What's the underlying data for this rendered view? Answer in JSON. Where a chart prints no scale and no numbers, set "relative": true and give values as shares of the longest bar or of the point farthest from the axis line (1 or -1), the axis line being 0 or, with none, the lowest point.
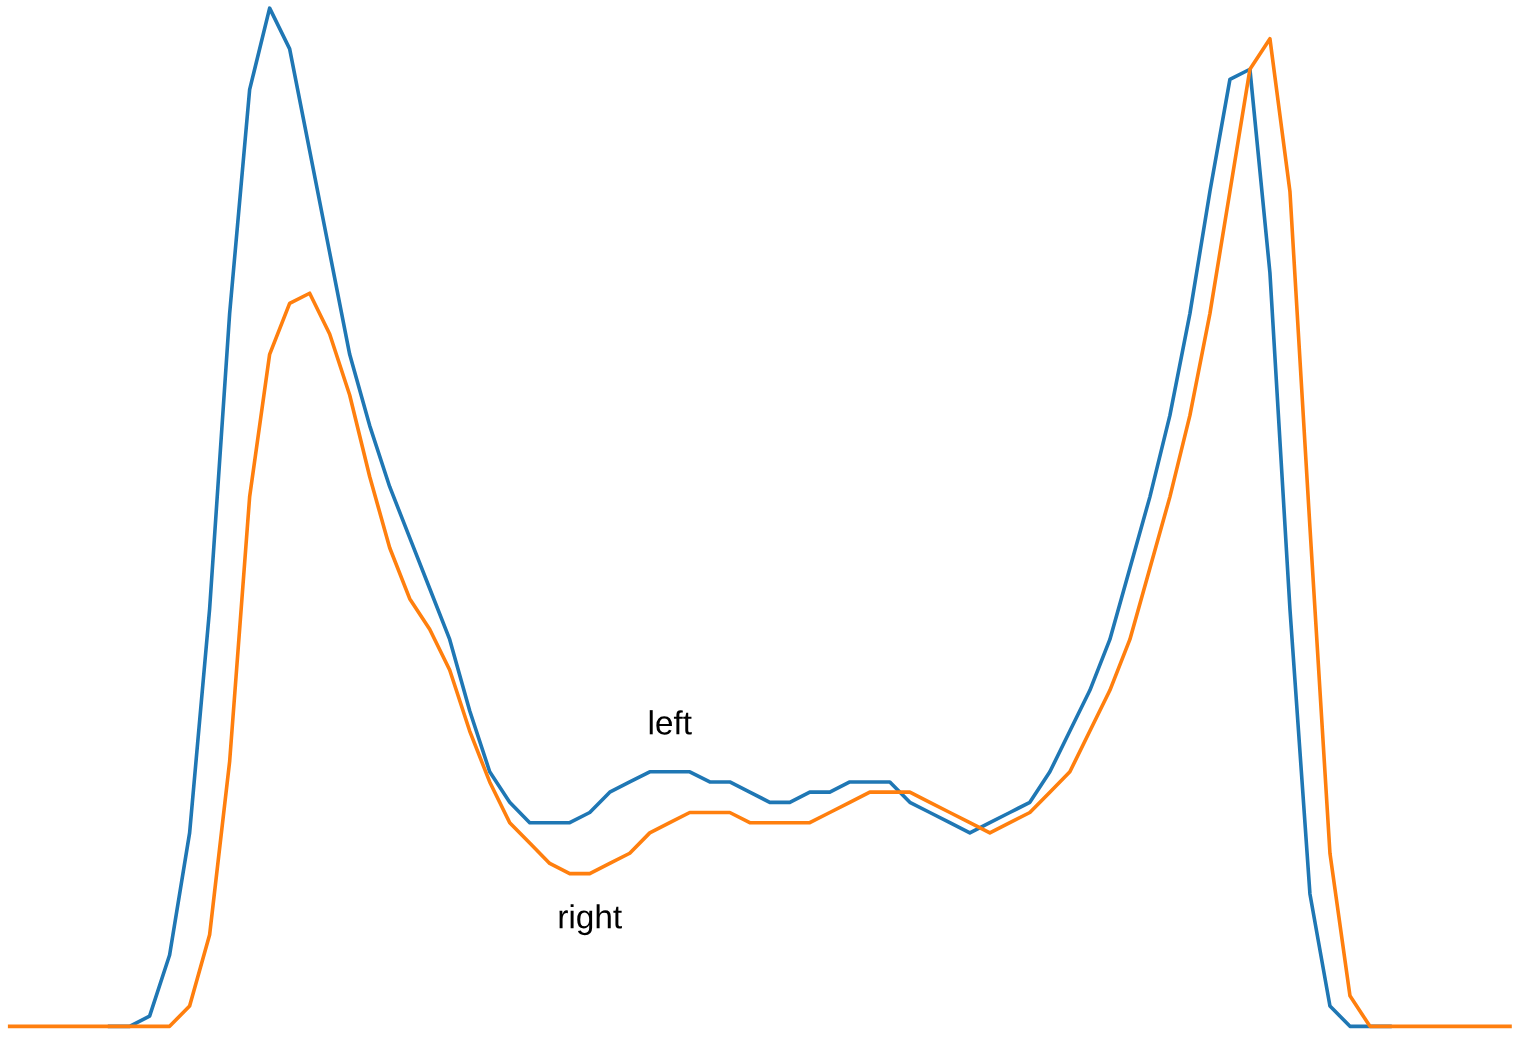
{
  "chart_data": {
    "type": "line",
    "relative": true,
    "grid": false,
    "legend": false,
    "categories": [
      null,
      null,
      null,
      null,
      null,
      null,
      null,
      null,
      null,
      null,
      null,
      null,
      null,
      null,
      null,
      null,
      null,
      null,
      null,
      null,
      null,
      null,
      null,
      null,
      null,
      null,
      null,
      null,
      null,
      null,
      null,
      null,
      null,
      null,
      null,
      null,
      null,
      null,
      null,
      null,
      null,
      null,
      null,
      null,
      null,
      null,
      null,
      null,
      null,
      null,
      null,
      null,
      null,
      null,
      null,
      null,
      null,
      null,
      null,
      null,
      null,
      null,
      null,
      null,
      null,
      null,
      null,
      null,
      null,
      null,
      null,
      null,
      null,
      null,
      null,
      null
    ],
    "series": [
      {
        "name": "left",
        "color": "#1f77b4",
        "values": [
          null,
          null,
          null,
          null,
          null,
          0,
          0,
          0.01,
          0.07,
          0.19,
          0.41,
          0.7,
          0.92,
          1.0,
          0.96,
          0.86,
          0.76,
          0.66,
          0.59,
          0.53,
          0.48,
          0.43,
          0.38,
          0.31,
          0.25,
          0.22,
          0.2,
          0.2,
          0.2,
          0.21,
          0.23,
          0.24,
          0.25,
          0.25,
          0.25,
          0.24,
          0.24,
          0.23,
          0.22,
          0.22,
          0.23,
          0.23,
          0.24,
          0.24,
          0.24,
          0.22,
          0.21,
          0.2,
          0.19,
          0.2,
          0.21,
          0.22,
          0.25,
          0.29,
          0.33,
          0.38,
          0.45,
          0.52,
          0.6,
          0.7,
          0.82,
          0.93,
          0.94,
          0.74,
          0.41,
          0.13,
          0.02,
          0,
          0,
          0,
          null,
          null,
          null,
          null,
          null,
          null
        ]
      },
      {
        "name": "right",
        "color": "#ff7f0e",
        "values": [
          0,
          0,
          0,
          0,
          0,
          0,
          0,
          0,
          0,
          0.02,
          0.09,
          0.26,
          0.52,
          0.66,
          0.71,
          0.72,
          0.68,
          0.62,
          0.54,
          0.47,
          0.42,
          0.39,
          0.35,
          0.29,
          0.24,
          0.2,
          0.18,
          0.16,
          0.15,
          0.15,
          0.16,
          0.17,
          0.19,
          0.2,
          0.21,
          0.21,
          0.21,
          0.2,
          0.2,
          0.2,
          0.2,
          0.21,
          0.22,
          0.23,
          0.23,
          0.23,
          0.22,
          0.21,
          0.2,
          0.19,
          0.2,
          0.21,
          0.23,
          0.25,
          0.29,
          0.33,
          0.38,
          0.45,
          0.52,
          0.6,
          0.7,
          0.82,
          0.94,
          0.97,
          0.82,
          0.49,
          0.17,
          0.03,
          0,
          0,
          0,
          0,
          0,
          0,
          0,
          0
        ]
      }
    ]
  }
}
